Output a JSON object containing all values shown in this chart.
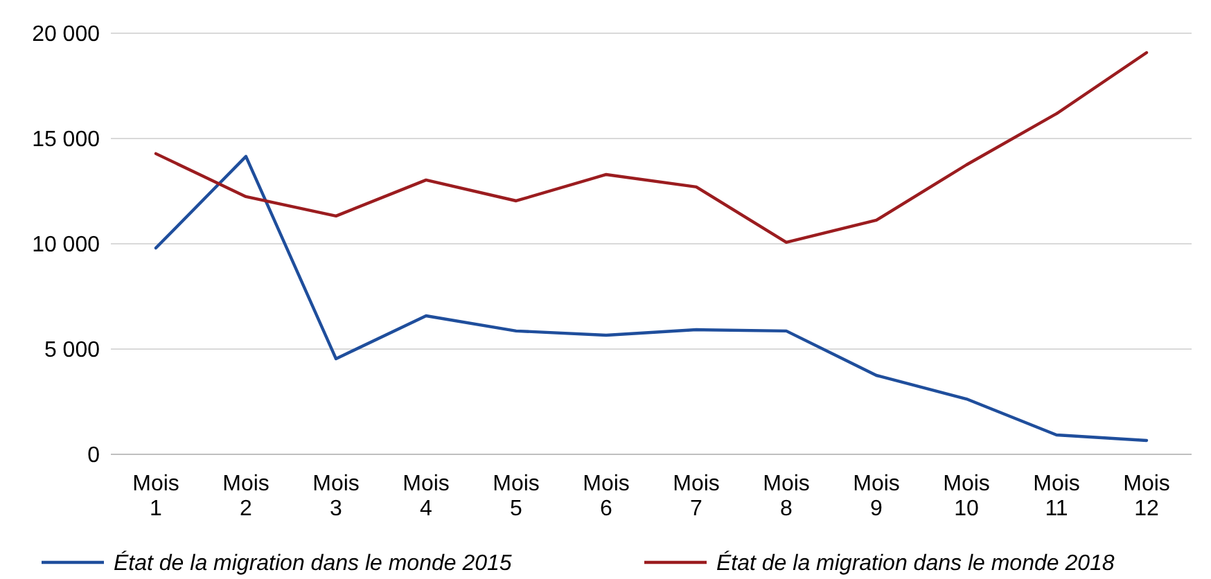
{
  "chart_data": {
    "type": "line",
    "categories": [
      "Mois 1",
      "Mois 2",
      "Mois 3",
      "Mois 4",
      "Mois 5",
      "Mois 6",
      "Mois 7",
      "Mois 8",
      "Mois 9",
      "Mois 10",
      "Mois 11",
      "Mois 12"
    ],
    "series": [
      {
        "name": "État de la migration dans le monde 2015",
        "color": "#1f4e9c",
        "values": [
          9800,
          14150,
          4540,
          6580,
          5860,
          5660,
          5920,
          5860,
          3750,
          2630,
          920,
          660
        ]
      },
      {
        "name": "État de la migration dans le monde 2018",
        "color": "#9b1c1f",
        "values": [
          14280,
          12240,
          11320,
          13030,
          12040,
          13290,
          12700,
          10070,
          11120,
          13750,
          16180,
          19080
        ]
      }
    ],
    "ylim": [
      0,
      20000
    ],
    "yticks": [
      0,
      {
        "value": 5000,
        "label": "5 000"
      },
      {
        "value": 10000,
        "label": "10 000"
      },
      {
        "value": 15000,
        "label": "15 000"
      },
      {
        "value": 20000,
        "label": "20 000"
      }
    ],
    "grid": "y",
    "legend": "bottom",
    "marker": "none",
    "line_style": "solid"
  }
}
